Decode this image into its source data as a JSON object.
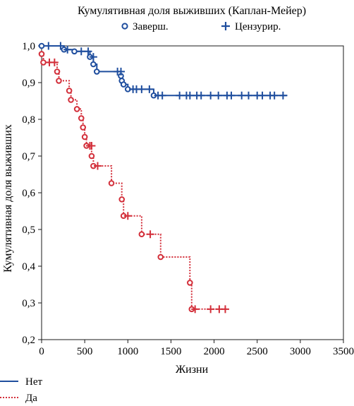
{
  "chart_data": {
    "type": "line",
    "title": "Кумулятивная доля выживших (Каплан-Мейер)",
    "xlabel": "Жизни",
    "ylabel": "Кумулятивная доля выживших",
    "xlim": [
      0,
      3500
    ],
    "ylim": [
      0.2,
      1.0
    ],
    "xticks": [
      "0",
      "500",
      "1000",
      "1500",
      "2000",
      "2500",
      "3000",
      "3500"
    ],
    "yticks": [
      "0,2",
      "0,3",
      "0,4",
      "0,5",
      "0,6",
      "0,7",
      "0,8",
      "0,9",
      "1,0"
    ],
    "marker_legend": [
      {
        "label": "Заверш.",
        "symbol": "circle"
      },
      {
        "label": "Цензурир.",
        "symbol": "plus"
      }
    ],
    "series": [
      {
        "name": "Нет",
        "color": "#1f4e9e",
        "line_style": "solid",
        "steps": [
          [
            0,
            1.0
          ],
          [
            260,
            0.99
          ],
          [
            380,
            0.985
          ],
          [
            560,
            0.97
          ],
          [
            600,
            0.95
          ],
          [
            640,
            0.93
          ],
          [
            920,
            0.918
          ],
          [
            930,
            0.905
          ],
          [
            950,
            0.895
          ],
          [
            1000,
            0.882
          ],
          [
            1300,
            0.865
          ],
          [
            2850,
            0.865
          ]
        ],
        "events": [
          [
            0,
            1.0
          ],
          [
            260,
            0.99
          ],
          [
            380,
            0.985
          ],
          [
            560,
            0.97
          ],
          [
            600,
            0.95
          ],
          [
            640,
            0.93
          ],
          [
            920,
            0.918
          ],
          [
            930,
            0.905
          ],
          [
            950,
            0.895
          ],
          [
            1000,
            0.882
          ],
          [
            1300,
            0.865
          ]
        ],
        "censored": [
          [
            80,
            1.0
          ],
          [
            220,
            1.0
          ],
          [
            300,
            0.99
          ],
          [
            460,
            0.985
          ],
          [
            540,
            0.985
          ],
          [
            600,
            0.97
          ],
          [
            880,
            0.93
          ],
          [
            920,
            0.93
          ],
          [
            1060,
            0.882
          ],
          [
            1100,
            0.882
          ],
          [
            1160,
            0.882
          ],
          [
            1250,
            0.882
          ],
          [
            1350,
            0.865
          ],
          [
            1400,
            0.865
          ],
          [
            1600,
            0.865
          ],
          [
            1680,
            0.865
          ],
          [
            1720,
            0.865
          ],
          [
            1800,
            0.865
          ],
          [
            1850,
            0.865
          ],
          [
            1960,
            0.865
          ],
          [
            2050,
            0.865
          ],
          [
            2150,
            0.865
          ],
          [
            2200,
            0.865
          ],
          [
            2320,
            0.865
          ],
          [
            2400,
            0.865
          ],
          [
            2500,
            0.865
          ],
          [
            2560,
            0.865
          ],
          [
            2650,
            0.865
          ],
          [
            2700,
            0.865
          ],
          [
            2800,
            0.865
          ]
        ]
      },
      {
        "name": "Да",
        "color": "#d32f3a",
        "line_style": "dotted",
        "steps": [
          [
            0,
            0.978
          ],
          [
            20,
            0.955
          ],
          [
            180,
            0.93
          ],
          [
            200,
            0.905
          ],
          [
            320,
            0.878
          ],
          [
            340,
            0.853
          ],
          [
            410,
            0.828
          ],
          [
            460,
            0.803
          ],
          [
            480,
            0.778
          ],
          [
            500,
            0.752
          ],
          [
            520,
            0.728
          ],
          [
            580,
            0.7
          ],
          [
            600,
            0.673
          ],
          [
            810,
            0.626
          ],
          [
            930,
            0.582
          ],
          [
            950,
            0.537
          ],
          [
            1160,
            0.487
          ],
          [
            1380,
            0.425
          ],
          [
            1720,
            0.355
          ],
          [
            1740,
            0.283
          ],
          [
            2150,
            0.283
          ]
        ],
        "events": [
          [
            0,
            0.978
          ],
          [
            20,
            0.955
          ],
          [
            180,
            0.93
          ],
          [
            200,
            0.905
          ],
          [
            320,
            0.878
          ],
          [
            340,
            0.853
          ],
          [
            410,
            0.828
          ],
          [
            460,
            0.803
          ],
          [
            480,
            0.778
          ],
          [
            500,
            0.752
          ],
          [
            520,
            0.728
          ],
          [
            580,
            0.7
          ],
          [
            600,
            0.673
          ],
          [
            810,
            0.626
          ],
          [
            930,
            0.582
          ],
          [
            950,
            0.537
          ],
          [
            1160,
            0.487
          ],
          [
            1380,
            0.425
          ],
          [
            1720,
            0.355
          ],
          [
            1740,
            0.283
          ]
        ],
        "censored": [
          [
            90,
            0.955
          ],
          [
            150,
            0.955
          ],
          [
            560,
            0.728
          ],
          [
            580,
            0.728
          ],
          [
            650,
            0.673
          ],
          [
            1000,
            0.537
          ],
          [
            1260,
            0.487
          ],
          [
            1780,
            0.283
          ],
          [
            1960,
            0.283
          ],
          [
            2060,
            0.283
          ],
          [
            2130,
            0.283
          ]
        ]
      }
    ]
  }
}
